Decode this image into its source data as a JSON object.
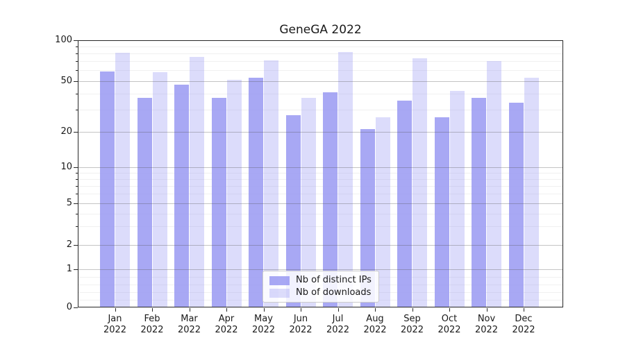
{
  "figure": {
    "title": "GeneGA 2022"
  },
  "chart_data": {
    "type": "bar",
    "title": "GeneGA 2022",
    "categories": [
      "Jan",
      "Feb",
      "Mar",
      "Apr",
      "May",
      "Jun",
      "Jul",
      "Aug",
      "Sep",
      "Oct",
      "Nov",
      "Dec"
    ],
    "category_year": "2022",
    "series": [
      {
        "name": "Nb of distinct IPs",
        "color": "rgba(150,150,242,0.83)",
        "color_hex": "#a8a8f3",
        "values": [
          59,
          37,
          47,
          37,
          53,
          27,
          41,
          21,
          35,
          26,
          37,
          34
        ]
      },
      {
        "name": "Nb of downloads",
        "color": "rgba(150,150,242,0.33)",
        "color_hex": "#dcdcf8",
        "values": [
          81,
          58,
          75,
          51,
          71,
          37,
          82,
          26,
          74,
          42,
          70,
          53
        ]
      }
    ],
    "yscale": "symlog",
    "ylim": [
      0,
      100
    ],
    "yticks": [
      100,
      50,
      20,
      10,
      5,
      2,
      1,
      0
    ],
    "yticks_minor": [
      0.2,
      0.4,
      0.6,
      0.8,
      3,
      4,
      6,
      7,
      8,
      9,
      30,
      40,
      60,
      70,
      80,
      90
    ],
    "grid": true,
    "legend_position": "lower center"
  },
  "colors": {
    "background": "#ffffff",
    "text": "#191919",
    "spine": "#262626",
    "grid_major": "rgba(85,85,85,0.35)",
    "grid_minor": "rgba(0,0,0,0.06)",
    "legend_border": "#cbcbcb",
    "legend_bg": "rgba(255,255,255,0.85)"
  }
}
